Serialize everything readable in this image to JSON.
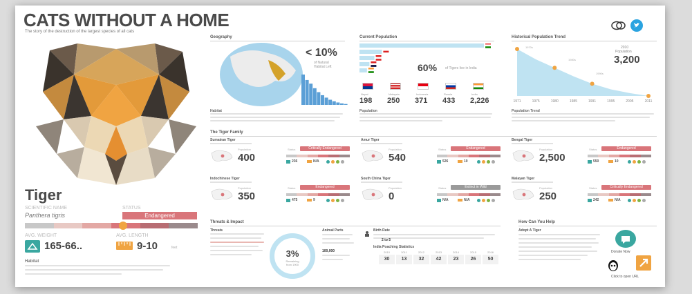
{
  "header": {
    "title": "CATS WITHOUT A HOME",
    "subtitle": "The story of the destruction of the largest species of all cats"
  },
  "tiger": {
    "name": "Tiger",
    "scientific_label": "SCIENTIFIC NAME",
    "scientific_name": "Panthera tigris",
    "status_label": "STATUS",
    "status": "Endangered",
    "weight_label": "AVG. WEIGHT",
    "weight": "165-66..",
    "length_label": "AVG. LENGTH",
    "length": "9-10",
    "length_unit": "feet",
    "habitat_label": "Habitat"
  },
  "geography": {
    "title": "Geography",
    "percent": "< 10%",
    "percent_caption_1": "of Natural",
    "percent_caption_2": "Habitat Left",
    "habitat_label": "Habitat",
    "habitat_bars": [
      1.0,
      0.82,
      0.7,
      0.55,
      0.42,
      0.32,
      0.24,
      0.17,
      0.12,
      0.08,
      0.05,
      0.03
    ]
  },
  "current_population": {
    "title": "Current Population",
    "percent": "60%",
    "percent_caption": "of Tigers live in India",
    "bars": [
      1.0,
      0.18,
      0.12,
      0.08,
      0.06
    ],
    "countries": [
      {
        "name": "Nepal",
        "value": "198"
      },
      {
        "name": "Malaysia",
        "value": "250"
      },
      {
        "name": "Indonesia",
        "value": "371"
      },
      {
        "name": "Russia",
        "value": "433"
      },
      {
        "name": "India",
        "value": "2,226"
      }
    ],
    "population_label": "Population"
  },
  "trend": {
    "title": "Historical Population Trend",
    "annotation_1970": "1970s",
    "annotation_1980": "1980s",
    "annotation_1990": "1990s",
    "year_2010": "2010",
    "pop_label": "Population",
    "pop_value": "3,200",
    "years": [
      "1971",
      "1975",
      "1980",
      "1985",
      "1991",
      "1995",
      "2005",
      "2011"
    ],
    "points": [
      1.0,
      0.78,
      0.6,
      0.42,
      0.26,
      0.14,
      0.06,
      0.0
    ],
    "trend_label": "Population Trend"
  },
  "family": {
    "title": "The Tiger Family",
    "population_label": "Population",
    "status_label": "Status",
    "cards": [
      {
        "name": "Sumatran Tiger",
        "value": "400",
        "status": "Critically Endangered",
        "status_color": "#d9757a",
        "weight": "236",
        "length": "N/A"
      },
      {
        "name": "Amur Tiger",
        "value": "540",
        "status": "Endangered",
        "status_color": "#d9757a",
        "weight": "526",
        "length": "10"
      },
      {
        "name": "Bengal Tiger",
        "value": "2,500",
        "status": "Endangered",
        "status_color": "#d9757a",
        "weight": "550",
        "length": "10"
      },
      {
        "name": "Indochinese Tiger",
        "value": "350",
        "status": "Endangered",
        "status_color": "#d9757a",
        "weight": "475",
        "length": "9"
      },
      {
        "name": "South China Tiger",
        "value": "0",
        "status": "Extinct in Wild",
        "status_color": "#9a9a9a",
        "weight": "N/A",
        "length": "N/A"
      },
      {
        "name": "Malayan Tiger",
        "value": "250",
        "status": "Critically Endangered",
        "status_color": "#d9757a",
        "weight": "242",
        "length": "N/A"
      }
    ]
  },
  "threats": {
    "title": "Threats & Impact",
    "threats_label": "Threats",
    "ring_value": "3%",
    "ring_caption_1": "Remaining",
    "ring_caption_2": "from 1900",
    "animal_parts_label": "Animal Parts",
    "animal_value": "100,000",
    "birth_rate_label": "Birth Rate",
    "birth_rate_value": "2 to 5",
    "poaching_label": "India Poaching Statistics",
    "poaching_years": [
      "2010",
      "2011",
      "2012",
      "2013",
      "2014",
      "2015",
      "2016"
    ],
    "poaching_values": [
      "30",
      "13",
      "32",
      "42",
      "23",
      "26",
      "50"
    ]
  },
  "help": {
    "title": "How Can You Help",
    "adopt_label": "Adopt A Tiger",
    "donate_label": "Donate Now",
    "open_url_label": "Click to open URL"
  }
}
